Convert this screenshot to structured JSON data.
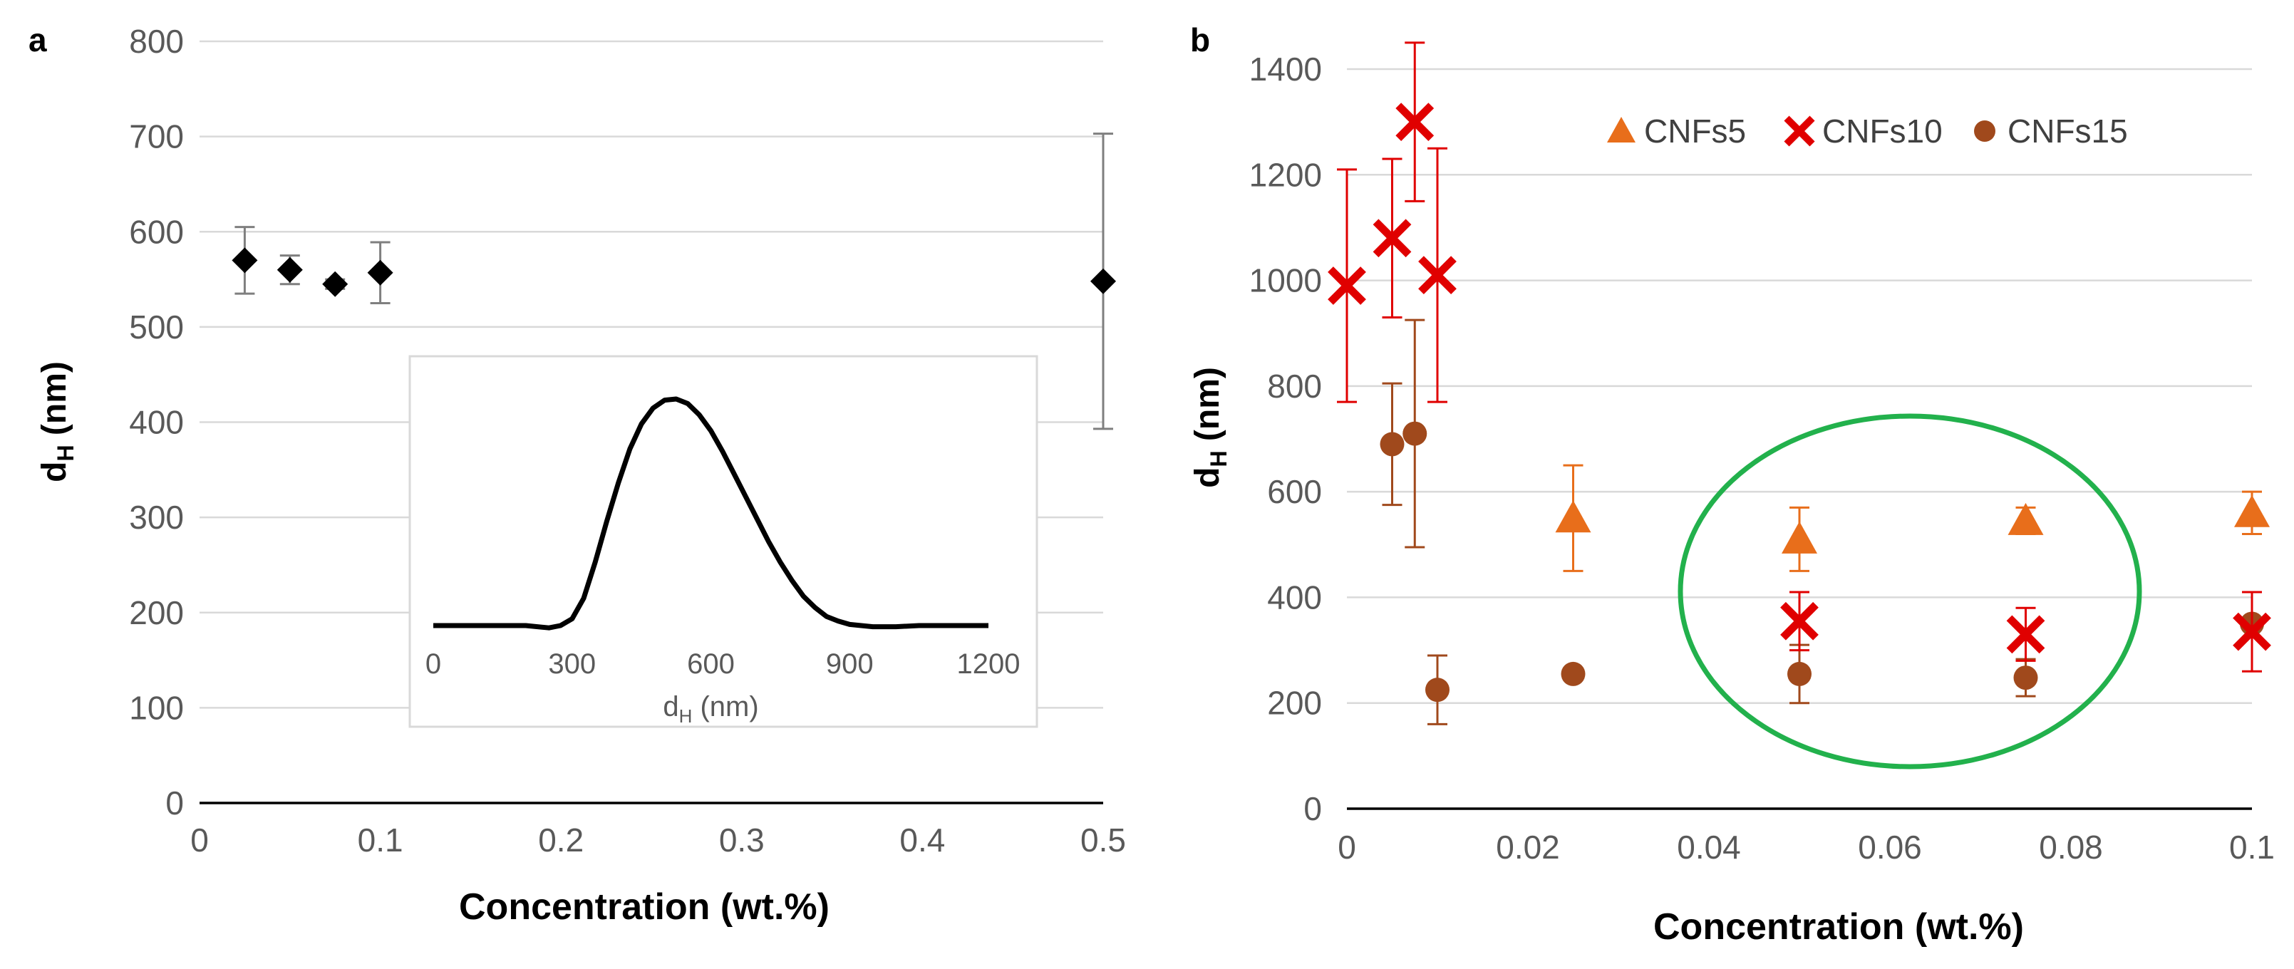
{
  "chart_data": [
    {
      "panel_label": "a",
      "type": "scatter",
      "xlabel": "Concentration (wt.%)",
      "ylabel_main": "d",
      "ylabel_sub": "H",
      "ylabel_unit": " (nm)",
      "xlim": [
        0,
        0.5
      ],
      "ylim": [
        0,
        800
      ],
      "xticks": [
        "0",
        "0.1",
        "0.2",
        "0.3",
        "0.4",
        "0.5"
      ],
      "yticks": [
        "0",
        "100",
        "200",
        "300",
        "400",
        "500",
        "600",
        "700",
        "800"
      ],
      "grid": true,
      "marker_color": "#000000",
      "error_color": "#7f7f7f",
      "series": [
        {
          "name": "dH",
          "x": [
            0.025,
            0.05,
            0.075,
            0.1,
            0.5
          ],
          "y": [
            570,
            560,
            545,
            557,
            548
          ],
          "err": [
            35,
            15,
            5,
            32,
            155
          ]
        }
      ],
      "inset": {
        "type": "line",
        "xlabel_main": "d",
        "xlabel_sub": "H",
        "xlabel_unit": " (nm)",
        "xlim": [
          0,
          1200
        ],
        "ylim": [
          0,
          1
        ],
        "xticks": [
          "0",
          "300",
          "600",
          "900",
          "1200"
        ],
        "x": [
          0,
          100,
          200,
          250,
          275,
          300,
          325,
          350,
          375,
          400,
          425,
          450,
          475,
          500,
          525,
          550,
          575,
          600,
          625,
          650,
          675,
          700,
          725,
          750,
          775,
          800,
          825,
          850,
          875,
          900,
          950,
          1000,
          1050,
          1100,
          1150,
          1200
        ],
        "y": [
          0,
          0,
          0,
          -0.01,
          0,
          0.03,
          0.12,
          0.28,
          0.46,
          0.63,
          0.78,
          0.89,
          0.96,
          0.995,
          1.0,
          0.98,
          0.93,
          0.86,
          0.77,
          0.67,
          0.57,
          0.47,
          0.37,
          0.28,
          0.2,
          0.13,
          0.08,
          0.04,
          0.02,
          0.005,
          -0.005,
          -0.005,
          0,
          0,
          0,
          0
        ]
      }
    },
    {
      "panel_label": "b",
      "type": "scatter",
      "xlabel": "Concentration (wt.%)",
      "ylabel_main": "d",
      "ylabel_sub": "H",
      "ylabel_unit": " (nm)",
      "xlim": [
        0,
        0.1
      ],
      "ylim": [
        0,
        1400
      ],
      "xticks": [
        "0",
        "0.02",
        "0.04",
        "0.06",
        "0.08",
        "0.1"
      ],
      "yticks": [
        "0",
        "200",
        "400",
        "600",
        "800",
        "1000",
        "1200",
        "1400"
      ],
      "grid": true,
      "legend": "top-right",
      "highlight_color": "#22b14c",
      "series": [
        {
          "name": "CNFs5",
          "marker": "triangle",
          "color": "#e86e1b",
          "x": [
            0.025,
            0.05,
            0.075,
            0.1
          ],
          "y": [
            550,
            510,
            545,
            560
          ],
          "err": [
            100,
            60,
            25,
            40
          ]
        },
        {
          "name": "CNFs10",
          "marker": "x",
          "color": "#e00000",
          "x": [
            0.0,
            0.005,
            0.0075,
            0.01,
            0.05,
            0.075,
            0.1
          ],
          "y": [
            990,
            1080,
            1300,
            1010,
            355,
            330,
            335
          ],
          "err": [
            220,
            150,
            150,
            240,
            55,
            50,
            75
          ]
        },
        {
          "name": "CNFs15",
          "marker": "circle",
          "color": "#a0491c",
          "x": [
            0.005,
            0.0075,
            0.01,
            0.025,
            0.05,
            0.075,
            0.1
          ],
          "y": [
            690,
            710,
            225,
            255,
            255,
            248,
            350
          ],
          "err": [
            115,
            215,
            65,
            0,
            55,
            35,
            0
          ]
        }
      ]
    }
  ]
}
